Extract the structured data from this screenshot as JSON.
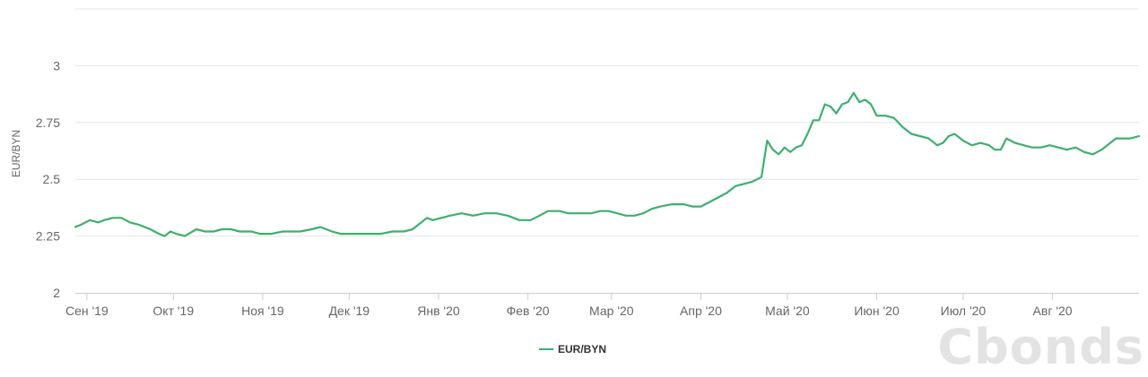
{
  "chart_data": {
    "type": "line",
    "ylabel": "EUR/BYN",
    "xlabel": "",
    "ylim": [
      2,
      3.25
    ],
    "yticks": [
      2,
      2.25,
      2.5,
      2.75,
      3
    ],
    "ytick_labels": [
      "2",
      "2.25",
      "2.5",
      "2.75",
      "3"
    ],
    "xlim": [
      "2019-08-28",
      "2020-08-31"
    ],
    "xticks": [
      {
        "date": "2019-09-01",
        "label": "Сен '19"
      },
      {
        "date": "2019-10-01",
        "label": "Окт '19"
      },
      {
        "date": "2019-11-01",
        "label": "Ноя '19"
      },
      {
        "date": "2019-12-01",
        "label": "Дек '19"
      },
      {
        "date": "2020-01-01",
        "label": "Янв '20"
      },
      {
        "date": "2020-02-01",
        "label": "Фев '20"
      },
      {
        "date": "2020-03-01",
        "label": "Мар '20"
      },
      {
        "date": "2020-04-01",
        "label": "Апр '20"
      },
      {
        "date": "2020-05-01",
        "label": "Май '20"
      },
      {
        "date": "2020-06-01",
        "label": "Июн '20"
      },
      {
        "date": "2020-07-01",
        "label": "Июл '20"
      },
      {
        "date": "2020-08-01",
        "label": "Авг '20"
      }
    ],
    "grid": true,
    "legend_position": "bottom-center",
    "series": [
      {
        "name": "EUR/BYN",
        "color": "#3daf6f",
        "points": [
          [
            "2019-08-28",
            2.29
          ],
          [
            "2019-08-30",
            2.3
          ],
          [
            "2019-09-02",
            2.32
          ],
          [
            "2019-09-05",
            2.31
          ],
          [
            "2019-09-07",
            2.32
          ],
          [
            "2019-09-10",
            2.33
          ],
          [
            "2019-09-13",
            2.33
          ],
          [
            "2019-09-16",
            2.31
          ],
          [
            "2019-09-19",
            2.3
          ],
          [
            "2019-09-23",
            2.28
          ],
          [
            "2019-09-26",
            2.26
          ],
          [
            "2019-09-28",
            2.25
          ],
          [
            "2019-09-30",
            2.27
          ],
          [
            "2019-10-02",
            2.26
          ],
          [
            "2019-10-05",
            2.25
          ],
          [
            "2019-10-09",
            2.28
          ],
          [
            "2019-10-12",
            2.27
          ],
          [
            "2019-10-15",
            2.27
          ],
          [
            "2019-10-18",
            2.28
          ],
          [
            "2019-10-21",
            2.28
          ],
          [
            "2019-10-24",
            2.27
          ],
          [
            "2019-10-28",
            2.27
          ],
          [
            "2019-10-31",
            2.26
          ],
          [
            "2019-11-04",
            2.26
          ],
          [
            "2019-11-08",
            2.27
          ],
          [
            "2019-11-11",
            2.27
          ],
          [
            "2019-11-14",
            2.27
          ],
          [
            "2019-11-18",
            2.28
          ],
          [
            "2019-11-21",
            2.29
          ],
          [
            "2019-11-25",
            2.27
          ],
          [
            "2019-11-28",
            2.26
          ],
          [
            "2019-12-02",
            2.26
          ],
          [
            "2019-12-05",
            2.26
          ],
          [
            "2019-12-09",
            2.26
          ],
          [
            "2019-12-12",
            2.26
          ],
          [
            "2019-12-16",
            2.27
          ],
          [
            "2019-12-20",
            2.27
          ],
          [
            "2019-12-23",
            2.28
          ],
          [
            "2019-12-26",
            2.31
          ],
          [
            "2019-12-28",
            2.33
          ],
          [
            "2019-12-30",
            2.32
          ],
          [
            "2020-01-02",
            2.33
          ],
          [
            "2020-01-05",
            2.34
          ],
          [
            "2020-01-09",
            2.35
          ],
          [
            "2020-01-13",
            2.34
          ],
          [
            "2020-01-17",
            2.35
          ],
          [
            "2020-01-21",
            2.35
          ],
          [
            "2020-01-25",
            2.34
          ],
          [
            "2020-01-29",
            2.32
          ],
          [
            "2020-02-02",
            2.32
          ],
          [
            "2020-02-05",
            2.34
          ],
          [
            "2020-02-08",
            2.36
          ],
          [
            "2020-02-12",
            2.36
          ],
          [
            "2020-02-15",
            2.35
          ],
          [
            "2020-02-19",
            2.35
          ],
          [
            "2020-02-23",
            2.35
          ],
          [
            "2020-02-26",
            2.36
          ],
          [
            "2020-02-29",
            2.36
          ],
          [
            "2020-03-03",
            2.35
          ],
          [
            "2020-03-06",
            2.34
          ],
          [
            "2020-03-09",
            2.34
          ],
          [
            "2020-03-12",
            2.35
          ],
          [
            "2020-03-15",
            2.37
          ],
          [
            "2020-03-18",
            2.38
          ],
          [
            "2020-03-22",
            2.39
          ],
          [
            "2020-03-26",
            2.39
          ],
          [
            "2020-03-29",
            2.38
          ],
          [
            "2020-04-01",
            2.38
          ],
          [
            "2020-04-04",
            2.4
          ],
          [
            "2020-04-07",
            2.42
          ],
          [
            "2020-04-10",
            2.44
          ],
          [
            "2020-04-13",
            2.47
          ],
          [
            "2020-04-16",
            2.48
          ],
          [
            "2020-04-19",
            2.49
          ],
          [
            "2020-04-22",
            2.51
          ],
          [
            "2020-04-24",
            2.67
          ],
          [
            "2020-04-26",
            2.63
          ],
          [
            "2020-04-28",
            2.61
          ],
          [
            "2020-04-30",
            2.64
          ],
          [
            "2020-05-02",
            2.62
          ],
          [
            "2020-05-04",
            2.64
          ],
          [
            "2020-05-06",
            2.65
          ],
          [
            "2020-05-08",
            2.7
          ],
          [
            "2020-05-10",
            2.76
          ],
          [
            "2020-05-12",
            2.76
          ],
          [
            "2020-05-14",
            2.83
          ],
          [
            "2020-05-16",
            2.82
          ],
          [
            "2020-05-18",
            2.79
          ],
          [
            "2020-05-20",
            2.83
          ],
          [
            "2020-05-22",
            2.84
          ],
          [
            "2020-05-24",
            2.88
          ],
          [
            "2020-05-26",
            2.84
          ],
          [
            "2020-05-28",
            2.85
          ],
          [
            "2020-05-30",
            2.83
          ],
          [
            "2020-06-01",
            2.78
          ],
          [
            "2020-06-04",
            2.78
          ],
          [
            "2020-06-07",
            2.77
          ],
          [
            "2020-06-10",
            2.73
          ],
          [
            "2020-06-13",
            2.7
          ],
          [
            "2020-06-16",
            2.69
          ],
          [
            "2020-06-19",
            2.68
          ],
          [
            "2020-06-22",
            2.65
          ],
          [
            "2020-06-24",
            2.66
          ],
          [
            "2020-06-26",
            2.69
          ],
          [
            "2020-06-28",
            2.7
          ],
          [
            "2020-07-01",
            2.67
          ],
          [
            "2020-07-04",
            2.65
          ],
          [
            "2020-07-07",
            2.66
          ],
          [
            "2020-07-10",
            2.65
          ],
          [
            "2020-07-12",
            2.63
          ],
          [
            "2020-07-14",
            2.63
          ],
          [
            "2020-07-16",
            2.68
          ],
          [
            "2020-07-19",
            2.66
          ],
          [
            "2020-07-22",
            2.65
          ],
          [
            "2020-07-25",
            2.64
          ],
          [
            "2020-07-28",
            2.64
          ],
          [
            "2020-07-31",
            2.65
          ],
          [
            "2020-08-03",
            2.64
          ],
          [
            "2020-08-06",
            2.63
          ],
          [
            "2020-08-09",
            2.64
          ],
          [
            "2020-08-12",
            2.62
          ],
          [
            "2020-08-15",
            2.61
          ],
          [
            "2020-08-18",
            2.63
          ],
          [
            "2020-08-20",
            2.65
          ],
          [
            "2020-08-23",
            2.68
          ],
          [
            "2020-08-25",
            2.68
          ],
          [
            "2020-08-28",
            2.68
          ],
          [
            "2020-08-31",
            2.69
          ]
        ]
      }
    ]
  },
  "legend": {
    "label": "EUR/BYN"
  },
  "watermark": {
    "text": "Cbonds"
  }
}
